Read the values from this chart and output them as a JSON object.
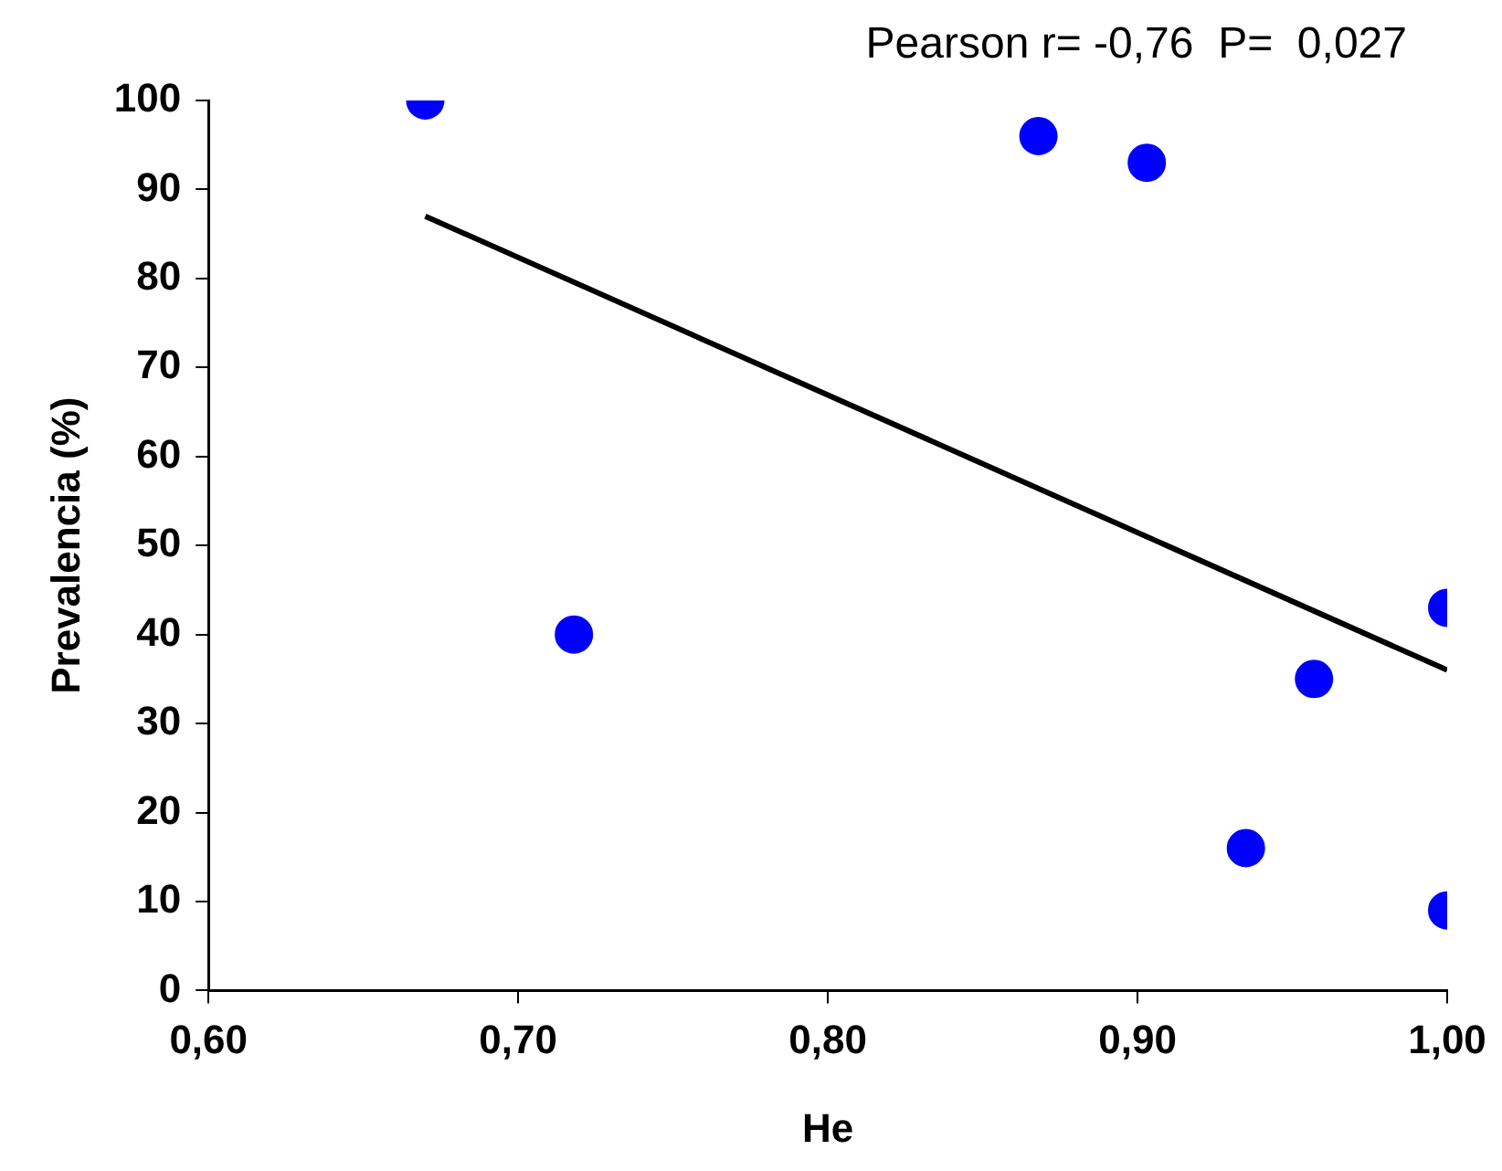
{
  "chart_data": {
    "type": "scatter",
    "xlabel": "He",
    "ylabel": "Prevalencia (%)",
    "annotations": [
      "Pearson r= -0,76  P=  0,027"
    ],
    "xlim": [
      0.6,
      1.0
    ],
    "xticks": [
      {
        "value": 0.6,
        "label": "0,60"
      },
      {
        "value": 0.7,
        "label": "0,70"
      },
      {
        "value": 0.8,
        "label": "0,80"
      },
      {
        "value": 0.9,
        "label": "0,90"
      },
      {
        "value": 1.0,
        "label": "1,00"
      }
    ],
    "ylim": [
      0,
      100
    ],
    "yticks": [
      0,
      10,
      20,
      30,
      40,
      50,
      60,
      70,
      80,
      90,
      100
    ],
    "grid": false,
    "legend": false,
    "marker": "circle",
    "series": [
      {
        "color": "#0000ff",
        "x": [
          0.67,
          0.718,
          0.868,
          0.903,
          0.935,
          0.957,
          1.0,
          1.0
        ],
        "values": [
          100,
          40,
          96,
          93,
          16,
          35,
          43,
          9
        ]
      },
      {
        "type": "line",
        "color": "#000000",
        "line_style": "solid",
        "marker": "none",
        "x": [
          0.67,
          1.0
        ],
        "values": [
          87,
          36
        ]
      }
    ]
  }
}
